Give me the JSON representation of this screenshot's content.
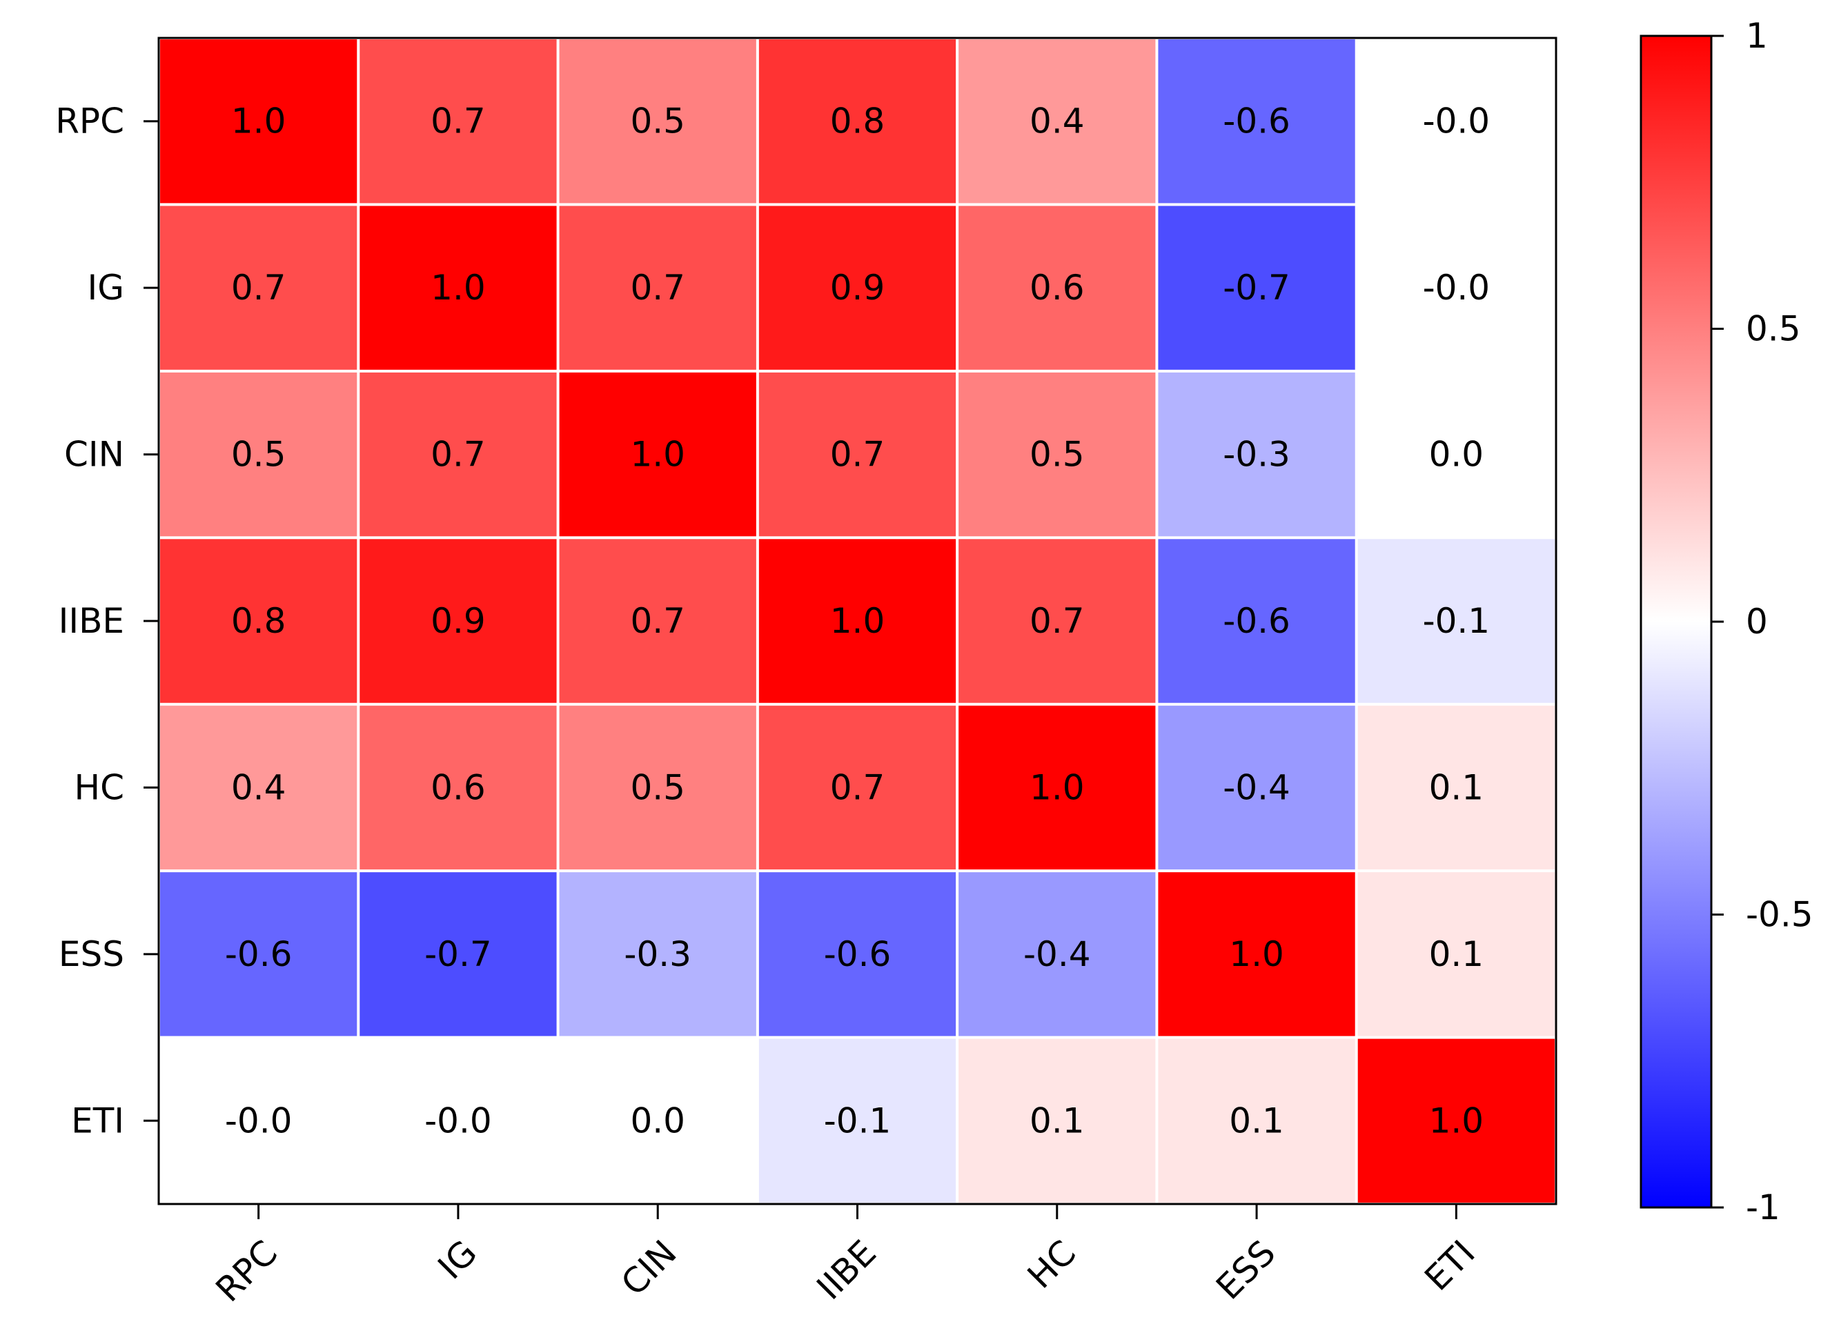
{
  "chart_data": {
    "type": "heatmap",
    "title": "",
    "xlabel": "",
    "ylabel": "",
    "variables": [
      "RPC",
      "IG",
      "CIN",
      "IIBE",
      "HC",
      "ESS",
      "ETI"
    ],
    "values": [
      [
        1.0,
        0.7,
        0.5,
        0.8,
        0.4,
        -0.6,
        -0.0
      ],
      [
        0.7,
        1.0,
        0.7,
        0.9,
        0.6,
        -0.7,
        -0.0
      ],
      [
        0.5,
        0.7,
        1.0,
        0.7,
        0.5,
        -0.3,
        0.0
      ],
      [
        0.8,
        0.9,
        0.7,
        1.0,
        0.7,
        -0.6,
        -0.1
      ],
      [
        0.4,
        0.6,
        0.5,
        0.7,
        1.0,
        -0.4,
        0.1
      ],
      [
        -0.6,
        -0.7,
        -0.3,
        -0.6,
        -0.4,
        1.0,
        0.1
      ],
      [
        -0.0,
        -0.0,
        0.0,
        -0.1,
        0.1,
        0.1,
        1.0
      ]
    ],
    "labels": [
      [
        "1.0",
        "0.7",
        "0.5",
        "0.8",
        "0.4",
        "-0.6",
        "-0.0"
      ],
      [
        "0.7",
        "1.0",
        "0.7",
        "0.9",
        "0.6",
        "-0.7",
        "-0.0"
      ],
      [
        "0.5",
        "0.7",
        "1.0",
        "0.7",
        "0.5",
        "-0.3",
        "0.0"
      ],
      [
        "0.8",
        "0.9",
        "0.7",
        "1.0",
        "0.7",
        "-0.6",
        "-0.1"
      ],
      [
        "0.4",
        "0.6",
        "0.5",
        "0.7",
        "1.0",
        "-0.4",
        "0.1"
      ],
      [
        "-0.6",
        "-0.7",
        "-0.3",
        "-0.6",
        "-0.4",
        "1.0",
        "0.1"
      ],
      [
        "-0.0",
        "-0.0",
        "0.0",
        "-0.1",
        "0.1",
        "0.1",
        "1.0"
      ]
    ],
    "colorbar": {
      "range": [
        -1,
        1
      ],
      "tick_values": [
        1,
        0.5,
        0,
        -0.5,
        -1
      ],
      "tick_labels": [
        "1",
        "0.5",
        "0",
        "-0.5",
        "-1"
      ],
      "colormap": "bwr",
      "low_color": "#0000ff",
      "mid_color": "#ffffff",
      "high_color": "#ff0000"
    }
  }
}
